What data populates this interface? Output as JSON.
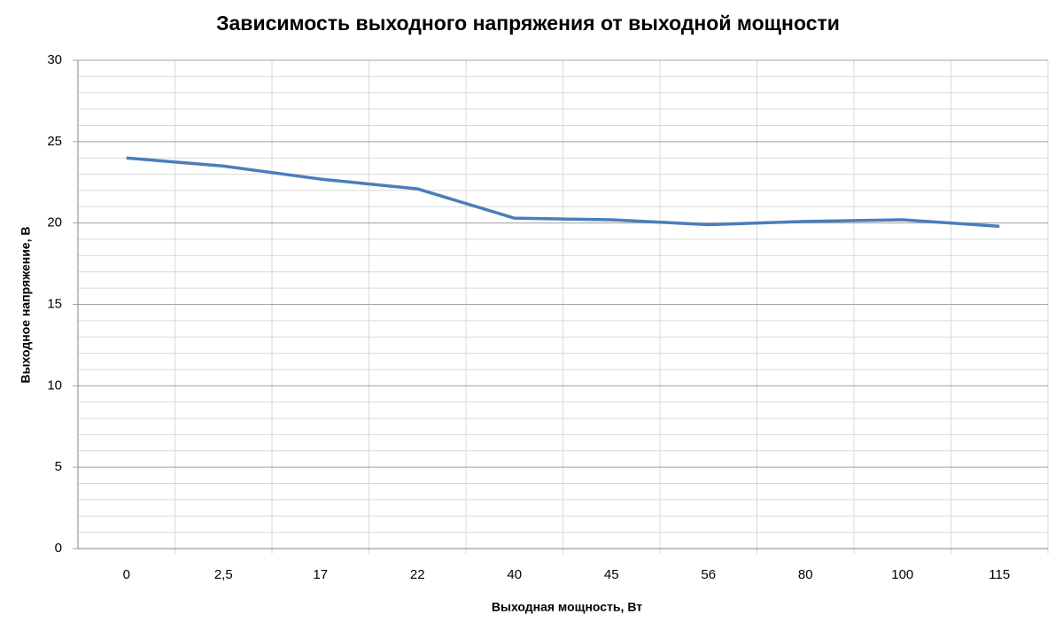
{
  "chart_data": {
    "type": "line",
    "title": "Зависимость выходного напряжения от выходной мощности",
    "x_label": "Выходная мощность, Вт",
    "y_label": "Выходное напряжение, В",
    "categories": [
      "0",
      "2,5",
      "17",
      "22",
      "40",
      "45",
      "56",
      "80",
      "100",
      "115"
    ],
    "series": [
      {
        "name": "Выходное напряжение",
        "color": "#4a7ebb",
        "values": [
          24,
          23.5,
          22.7,
          22.1,
          20.3,
          20.2,
          19.9,
          20.1,
          20.2,
          19.8
        ]
      }
    ],
    "ylim": [
      0,
      30
    ],
    "yticks": [
      0,
      5,
      10,
      15,
      20,
      25,
      30
    ],
    "grid": true,
    "minor_grid": 1,
    "legend": false
  }
}
